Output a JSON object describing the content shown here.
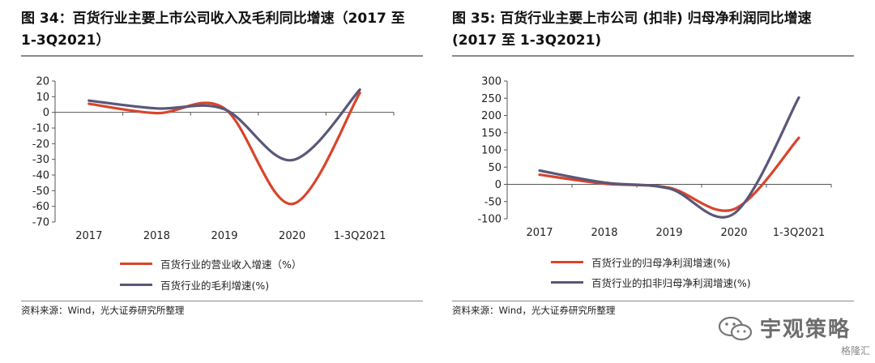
{
  "left": {
    "title": "图 34：百货行业主要上市公司收入及毛利同比增速（2017 至 1-3Q2021）",
    "source": "资料来源：Wind，光大证券研究所整理"
  },
  "right": {
    "title": "图 35: 百货行业主要上市公司 (扣非) 归母净利润同比增速 (2017 至 1-3Q2021)",
    "source": "资料来源：Wind，光大证券研究所整理"
  },
  "watermark": {
    "text": "宇观策略",
    "icon": "wechat-icon",
    "footer": "格隆汇"
  },
  "colors": {
    "series_red": "#d9442b",
    "series_blue": "#5a5878",
    "axis": "#555555"
  },
  "chart_data": [
    {
      "type": "line",
      "title": "图 34：百货行业主要上市公司收入及毛利同比增速（2017 至 1-3Q2021）",
      "categories": [
        "2017",
        "2018",
        "2019",
        "2020",
        "1-3Q2021"
      ],
      "ylim": [
        -70,
        20
      ],
      "yticks": [
        20,
        10,
        0,
        -10,
        -20,
        -30,
        -40,
        -50,
        -60,
        -70
      ],
      "smooth": true,
      "legend_position": "bottom",
      "series": [
        {
          "name": "百货行业的营业收入增速（%）",
          "color": "#d9442b",
          "values": [
            5.5,
            -0.5,
            2.5,
            -58.5,
            12.5
          ]
        },
        {
          "name": "百货行业的毛利增速(%)",
          "color": "#5a5878",
          "values": [
            7.5,
            2.5,
            2.0,
            -30.5,
            14.5
          ]
        }
      ]
    },
    {
      "type": "line",
      "title": "图 35: 百货行业主要上市公司 (扣非) 归母净利润同比增速 (2017 至 1-3Q2021)",
      "categories": [
        "2017",
        "2018",
        "2019",
        "2020",
        "1-3Q2021"
      ],
      "ylim": [
        -100,
        300
      ],
      "yticks": [
        300,
        250,
        200,
        150,
        100,
        50,
        0,
        -50,
        -100
      ],
      "smooth": true,
      "legend_position": "bottom",
      "series": [
        {
          "name": "百货行业的归母净利润增速(%)",
          "color": "#d9442b",
          "values": [
            28,
            2,
            -10,
            -72,
            135
          ]
        },
        {
          "name": "百货行业的扣非归母净利润增速(%)",
          "color": "#5a5878",
          "values": [
            40,
            5,
            -12,
            -85,
            252
          ]
        }
      ]
    }
  ]
}
